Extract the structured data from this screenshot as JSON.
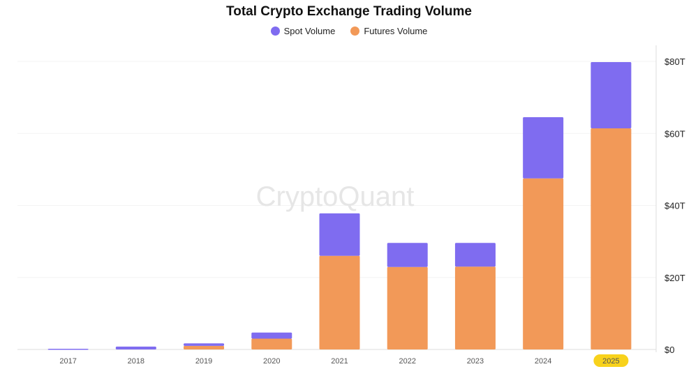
{
  "chart_data": {
    "type": "bar",
    "stacked": true,
    "title": "Total Crypto Exchange Trading Volume",
    "watermark": "CryptoQuant",
    "categories": [
      "2017",
      "2018",
      "2019",
      "2020",
      "2021",
      "2022",
      "2023",
      "2024",
      "2025"
    ],
    "highlighted_category": "2025",
    "series": [
      {
        "name": "Spot Volume",
        "color": "#7f6cf0",
        "values": [
          0.2,
          0.8,
          0.7,
          1.7,
          11.8,
          6.7,
          6.6,
          17.0,
          18.4
        ]
      },
      {
        "name": "Futures Volume",
        "color": "#f29958",
        "values": [
          0,
          0,
          1.0,
          3.0,
          26.0,
          22.9,
          23.0,
          47.5,
          61.4
        ]
      }
    ],
    "stack_order": [
      "Futures Volume",
      "Spot Volume"
    ],
    "yticks": [
      "$0",
      "$20T",
      "$40T",
      "$60T",
      "$80T"
    ],
    "ytick_values": [
      0,
      20,
      40,
      60,
      80
    ],
    "ylim": [
      0,
      80
    ],
    "yaxis_position": "right",
    "grid": true,
    "legend_position": "top"
  }
}
